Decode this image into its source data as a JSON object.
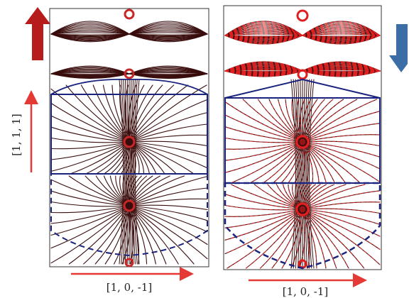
{
  "figure": {
    "left_panel": {
      "spin_indicator": "up-arrow",
      "horizontal_axis_label": "[1, 0, -1]",
      "vertical_axis_label": "[1, 1, 1]",
      "domain_box_style": "solid-upper-dashed-lower"
    },
    "right_panel": {
      "spin_indicator": "down-arrow",
      "horizontal_axis_label": "[1, 0, -1]",
      "domain_box_style": "solid-upper-dashed-lower"
    },
    "colors": {
      "field_lines": "#3a0d0d",
      "field_lines_overlay": "#e02020",
      "domain_box": "#1a237e",
      "axis_arrow": "#e53935",
      "spin_up_arrow": "#b71c1c",
      "spin_down_arrow": "#3b6ea5"
    }
  }
}
